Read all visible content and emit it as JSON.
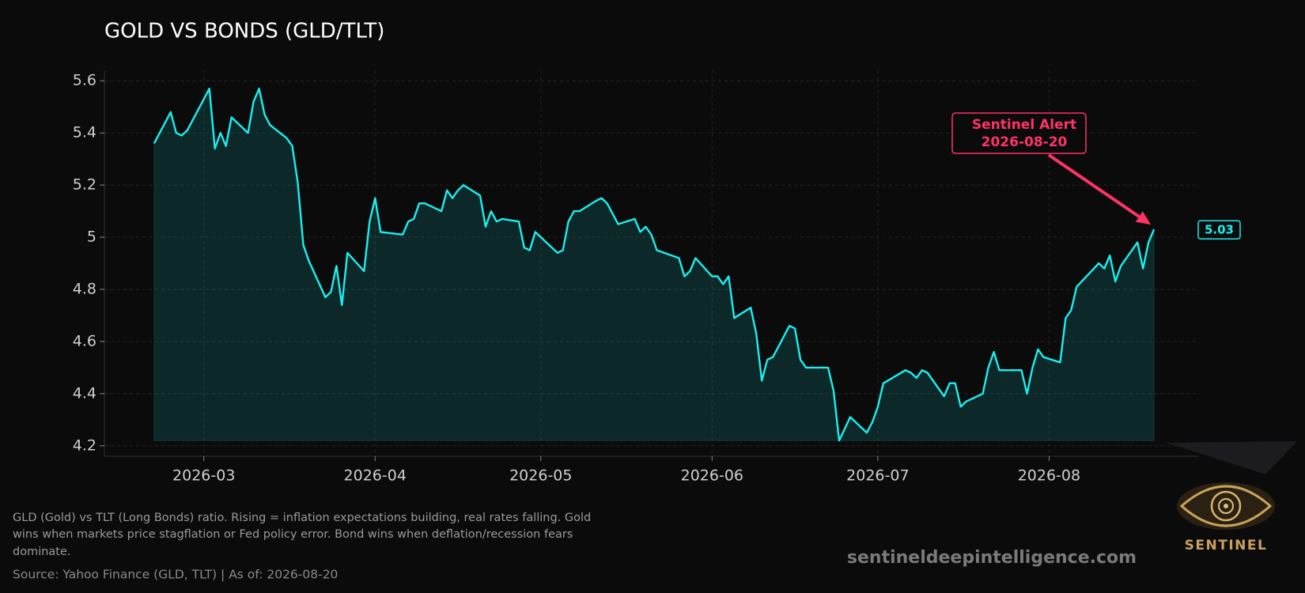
{
  "chart_data": {
    "type": "line",
    "title": "GOLD VS BONDS (GLD/TLT)",
    "x": [
      "2026-02-20",
      "2026-02-23",
      "2026-02-24",
      "2026-02-25",
      "2026-02-26",
      "2026-02-27",
      "2026-03-02",
      "2026-03-03",
      "2026-03-04",
      "2026-03-05",
      "2026-03-06",
      "2026-03-09",
      "2026-03-10",
      "2026-03-11",
      "2026-03-12",
      "2026-03-13",
      "2026-03-16",
      "2026-03-17",
      "2026-03-18",
      "2026-03-19",
      "2026-03-20",
      "2026-03-23",
      "2026-03-24",
      "2026-03-25",
      "2026-03-26",
      "2026-03-27",
      "2026-03-30",
      "2026-03-31",
      "2026-04-01",
      "2026-04-02",
      "2026-04-06",
      "2026-04-07",
      "2026-04-08",
      "2026-04-09",
      "2026-04-10",
      "2026-04-13",
      "2026-04-14",
      "2026-04-15",
      "2026-04-16",
      "2026-04-17",
      "2026-04-20",
      "2026-04-21",
      "2026-04-22",
      "2026-04-23",
      "2026-04-24",
      "2026-04-27",
      "2026-04-28",
      "2026-04-29",
      "2026-04-30",
      "2026-05-04",
      "2026-05-05",
      "2026-05-06",
      "2026-05-07",
      "2026-05-08",
      "2026-05-11",
      "2026-05-12",
      "2026-05-13",
      "2026-05-15",
      "2026-05-18",
      "2026-05-19",
      "2026-05-20",
      "2026-05-21",
      "2026-05-22",
      "2026-05-26",
      "2026-05-27",
      "2026-05-28",
      "2026-05-29",
      "2026-06-01",
      "2026-06-02",
      "2026-06-03",
      "2026-06-04",
      "2026-06-05",
      "2026-06-08",
      "2026-06-09",
      "2026-06-10",
      "2026-06-11",
      "2026-06-12",
      "2026-06-15",
      "2026-06-16",
      "2026-06-17",
      "2026-06-18",
      "2026-06-22",
      "2026-06-23",
      "2026-06-24",
      "2026-06-26",
      "2026-06-29",
      "2026-06-30",
      "2026-07-01",
      "2026-07-02",
      "2026-07-06",
      "2026-07-07",
      "2026-07-08",
      "2026-07-09",
      "2026-07-10",
      "2026-07-13",
      "2026-07-14",
      "2026-07-15",
      "2026-07-16",
      "2026-07-17",
      "2026-07-20",
      "2026-07-21",
      "2026-07-22",
      "2026-07-23",
      "2026-07-27",
      "2026-07-28",
      "2026-07-29",
      "2026-07-30",
      "2026-07-31",
      "2026-08-03",
      "2026-08-04",
      "2026-08-05",
      "2026-08-06",
      "2026-08-10",
      "2026-08-11",
      "2026-08-12",
      "2026-08-13",
      "2026-08-14",
      "2026-08-17",
      "2026-08-18",
      "2026-08-19",
      "2026-08-20"
    ],
    "series": [
      {
        "color": "#18f0f0",
        "values": [
          5.36,
          5.48,
          5.4,
          5.39,
          5.41,
          5.45,
          5.57,
          5.34,
          5.4,
          5.35,
          5.46,
          5.4,
          5.52,
          5.57,
          5.47,
          5.43,
          5.38,
          5.35,
          5.21,
          4.97,
          4.91,
          4.77,
          4.79,
          4.89,
          4.74,
          4.94,
          4.87,
          5.06,
          5.15,
          5.02,
          5.01,
          5.06,
          5.07,
          5.13,
          5.13,
          5.1,
          5.18,
          5.15,
          5.18,
          5.2,
          5.16,
          5.04,
          5.1,
          5.06,
          5.07,
          5.06,
          4.96,
          4.95,
          5.02,
          4.94,
          4.95,
          5.06,
          5.1,
          5.1,
          5.14,
          5.15,
          5.13,
          5.05,
          5.07,
          5.02,
          5.04,
          5.01,
          4.95,
          4.92,
          4.85,
          4.87,
          4.92,
          4.85,
          4.85,
          4.82,
          4.85,
          4.69,
          4.73,
          4.63,
          4.45,
          4.53,
          4.54,
          4.66,
          4.65,
          4.53,
          4.5,
          4.5,
          4.41,
          4.22,
          4.31,
          4.25,
          4.29,
          4.35,
          4.44,
          4.49,
          4.48,
          4.46,
          4.49,
          4.48,
          4.39,
          4.44,
          4.44,
          4.35,
          4.37,
          4.4,
          4.5,
          4.56,
          4.49,
          4.49,
          4.4,
          4.5,
          4.57,
          4.54,
          4.52,
          4.69,
          4.72,
          4.81,
          4.9,
          4.88,
          4.93,
          4.83,
          4.89,
          4.98,
          4.88,
          4.98,
          5.03
        ]
      }
    ],
    "xlim": [
      "2026-02-11",
      "2026-08-28"
    ],
    "xticks": [
      {
        "value": "2026-03-01",
        "label": "2026-03"
      },
      {
        "value": "2026-04-01",
        "label": "2026-04"
      },
      {
        "value": "2026-05-01",
        "label": "2026-05"
      },
      {
        "value": "2026-06-01",
        "label": "2026-06"
      },
      {
        "value": "2026-07-01",
        "label": "2026-07"
      },
      {
        "value": "2026-08-01",
        "label": "2026-08"
      }
    ],
    "ylim": [
      4.16,
      5.64
    ],
    "yticks": [
      4.2,
      4.4,
      4.6,
      4.8,
      5.0,
      5.2,
      5.4,
      5.6
    ],
    "grid": true,
    "annotation": {
      "lines": [
        "Sentinel Alert",
        "2026-08-20"
      ],
      "color": "#ff3366"
    },
    "caption": [
      "GLD (Gold) vs TLT (Long Bonds) ratio. Rising = inflation expectations building, real rates falling. Gold",
      "wins when markets price stagflation or Fed policy error. Bond wins when deflation/recession fears",
      "dominate."
    ],
    "source": "Source: Yahoo Finance (GLD, TLT) | As of: 2026-08-20",
    "watermark": "sentineldeepintelligence.com",
    "logo_text": "SENTINEL"
  }
}
